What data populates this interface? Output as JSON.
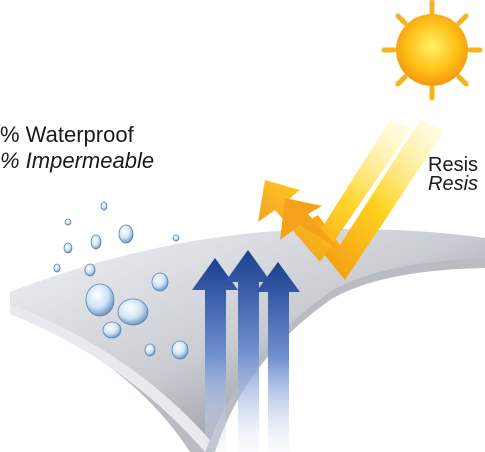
{
  "labels": {
    "left": {
      "english": "% Waterproof",
      "french": "% Impermeable"
    },
    "right": {
      "english": "Resis",
      "french": "Resis"
    }
  }
}
